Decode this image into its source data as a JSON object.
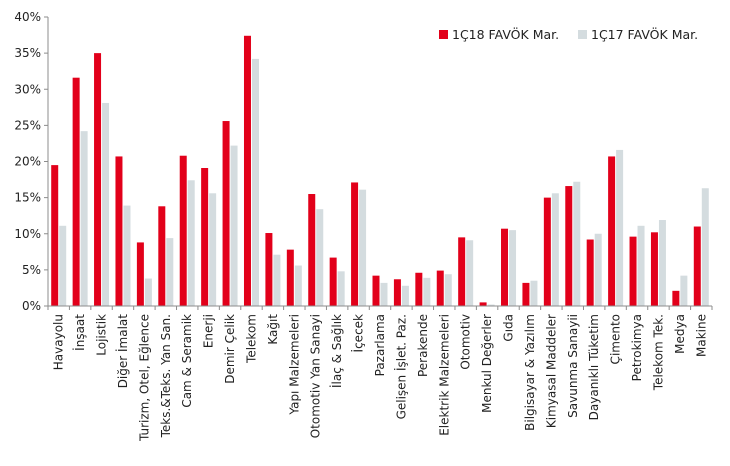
{
  "chart_data": {
    "type": "bar",
    "title": "",
    "xlabel": "",
    "ylabel": "",
    "ylim": [
      0,
      40
    ],
    "ytick_step": 5,
    "ytick_suffix": "%",
    "grid": false,
    "legend_position": "top-right",
    "categories": [
      "Havayolu",
      "İnşaat",
      "Lojistik",
      "Diğer İmalat",
      "Turizm, Otel, Eğlence",
      "Teks.&Teks. Yan San.",
      "Cam & Seramik",
      "Enerji",
      "Demir Çelik",
      "Telekom",
      "Kağıt",
      "Yapı Malzemeleri",
      "Otomotiv Yan Sanayi",
      "İlaç & Sağlık",
      "İçecek",
      "Pazarlama",
      "Gelişen İşlet. Paz.",
      "Perakende",
      "Elektrik Malzemeleri",
      "Otomotiv",
      "Menkul Değerler",
      "Gıda",
      "Bilgisayar & Yazılım",
      "Kimyasal Maddeler",
      "Savunma Sanayii",
      "Dayanıklı Tüketim",
      "Çimento",
      "Petrokimya",
      "Telekom Tek.",
      "Medya",
      "Makine"
    ],
    "series": [
      {
        "name": "1Ç18 FAVÖK Mar.",
        "color": "#e2001a",
        "values": [
          19.5,
          31.6,
          35.0,
          20.7,
          8.8,
          13.8,
          20.8,
          19.1,
          25.6,
          37.4,
          10.1,
          7.8,
          15.5,
          6.7,
          17.1,
          4.2,
          3.7,
          4.6,
          4.9,
          9.5,
          0.5,
          10.7,
          3.2,
          15.0,
          16.6,
          9.2,
          20.7,
          9.6,
          10.2,
          2.1,
          11.0
        ]
      },
      {
        "name": "1Ç17 FAVÖK Mar.",
        "color": "#d4dcdf",
        "values": [
          11.1,
          24.2,
          28.1,
          13.9,
          3.8,
          9.4,
          17.4,
          15.6,
          22.2,
          34.2,
          7.1,
          5.6,
          13.4,
          4.8,
          16.1,
          3.2,
          2.8,
          3.9,
          4.4,
          9.1,
          0.2,
          10.5,
          3.5,
          15.6,
          17.2,
          10.0,
          21.6,
          11.1,
          11.9,
          4.2,
          16.3
        ]
      }
    ]
  }
}
